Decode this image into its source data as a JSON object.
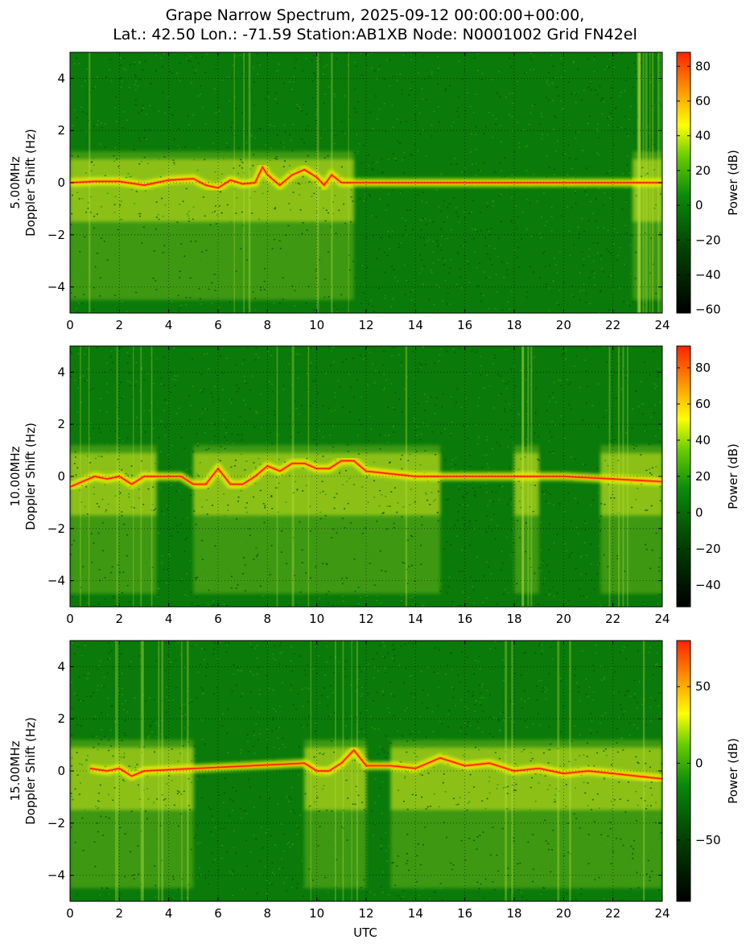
{
  "figure": {
    "title_line1": "Grape Narrow Spectrum, 2025-09-12 00:00:00+00:00,",
    "title_line2": "Lat.: 42.50 Lon.: -71.59 Station:AB1XB Node: N0001002 Grid FN42el",
    "xlabel": "UTC",
    "colorbar_label": "Power (dB)"
  },
  "colors": {
    "background_green": "#0a7a0a",
    "yellow": "#ffff00",
    "orange": "#ff9900",
    "red": "#ff2200",
    "black": "#000000"
  },
  "chart_data": [
    {
      "type": "heatmap",
      "name": "5.00MHz",
      "ylabel_line1": "5.00MHz",
      "ylabel_line2": "Doppler Shift (Hz)",
      "xlim": [
        0,
        24
      ],
      "ylim": [
        -5,
        5
      ],
      "xticks": [
        0,
        2,
        4,
        6,
        8,
        10,
        12,
        14,
        16,
        18,
        20,
        22,
        24
      ],
      "yticks": [
        -4,
        -2,
        0,
        2,
        4
      ],
      "grid": true,
      "colorbar": {
        "range": [
          -62,
          88
        ],
        "ticks": [
          80,
          60,
          40,
          20,
          0,
          -20,
          -40,
          -60
        ]
      },
      "carrier_trace": {
        "x": [
          0,
          1,
          2,
          3,
          4,
          5,
          5.5,
          6,
          6.5,
          7,
          7.5,
          7.8,
          8,
          8.5,
          9,
          9.5,
          10,
          10.3,
          10.6,
          11,
          12,
          24
        ],
        "y": [
          0,
          0.05,
          0.05,
          -0.1,
          0.1,
          0.15,
          -0.1,
          -0.2,
          0.1,
          -0.05,
          0.0,
          0.6,
          0.3,
          -0.1,
          0.3,
          0.5,
          0.2,
          -0.1,
          0.3,
          0.0,
          0.0,
          0.0
        ]
      },
      "broadband_intervals": [
        [
          0,
          11.5
        ],
        [
          22.8,
          24
        ]
      ]
    },
    {
      "type": "heatmap",
      "name": "10.00MHz",
      "ylabel_line1": "10.00MHz",
      "ylabel_line2": "Doppler Shift (Hz)",
      "xlim": [
        0,
        24
      ],
      "ylim": [
        -5,
        5
      ],
      "xticks": [
        0,
        2,
        4,
        6,
        8,
        10,
        12,
        14,
        16,
        18,
        20,
        22,
        24
      ],
      "yticks": [
        -4,
        -2,
        0,
        2,
        4
      ],
      "grid": true,
      "colorbar": {
        "range": [
          -52,
          92
        ],
        "ticks": [
          80,
          60,
          40,
          20,
          0,
          -20,
          -40
        ]
      },
      "carrier_trace": {
        "x": [
          0,
          0.5,
          1,
          1.5,
          2,
          2.5,
          3,
          4,
          4.5,
          5,
          5.5,
          6,
          6.5,
          7,
          7.5,
          8,
          8.5,
          9,
          9.5,
          10,
          10.5,
          11,
          11.5,
          12,
          13,
          14,
          16,
          18,
          20,
          22,
          24
        ],
        "y": [
          -0.4,
          -0.2,
          0.0,
          -0.1,
          0.0,
          -0.3,
          0.0,
          0.0,
          0.0,
          -0.3,
          -0.3,
          0.3,
          -0.3,
          -0.3,
          0.0,
          0.4,
          0.2,
          0.5,
          0.5,
          0.3,
          0.3,
          0.6,
          0.6,
          0.2,
          0.1,
          0.0,
          0.0,
          0.0,
          0.0,
          -0.1,
          -0.2
        ]
      },
      "broadband_intervals": [
        [
          0,
          3.5
        ],
        [
          5,
          15
        ],
        [
          18,
          19
        ],
        [
          21.5,
          24
        ]
      ]
    },
    {
      "type": "heatmap",
      "name": "15.00MHz",
      "ylabel_line1": "15.00MHz",
      "ylabel_line2": "Doppler Shift (Hz)",
      "xlim": [
        0,
        24
      ],
      "ylim": [
        -5,
        5
      ],
      "xticks": [
        0,
        2,
        4,
        6,
        8,
        10,
        12,
        14,
        16,
        18,
        20,
        22,
        24
      ],
      "yticks": [
        -4,
        -2,
        0,
        2,
        4
      ],
      "grid": true,
      "colorbar": {
        "range": [
          -90,
          80
        ],
        "ticks": [
          50,
          0,
          -50
        ]
      },
      "carrier_trace": {
        "x": [
          0.8,
          1.5,
          2,
          2.5,
          3,
          9.5,
          10,
          10.5,
          11,
          11.5,
          12,
          13,
          14,
          14.5,
          15,
          16,
          17,
          18,
          19,
          20,
          21,
          22,
          23,
          24
        ],
        "y": [
          0.1,
          0.0,
          0.1,
          -0.2,
          0.0,
          0.3,
          0.0,
          0.0,
          0.3,
          0.8,
          0.2,
          0.2,
          0.1,
          0.3,
          0.5,
          0.2,
          0.3,
          0.0,
          0.1,
          -0.1,
          0.0,
          -0.1,
          -0.2,
          -0.3
        ]
      },
      "broadband_intervals": [
        [
          0,
          5
        ],
        [
          9.5,
          12
        ],
        [
          13,
          24
        ]
      ]
    }
  ]
}
